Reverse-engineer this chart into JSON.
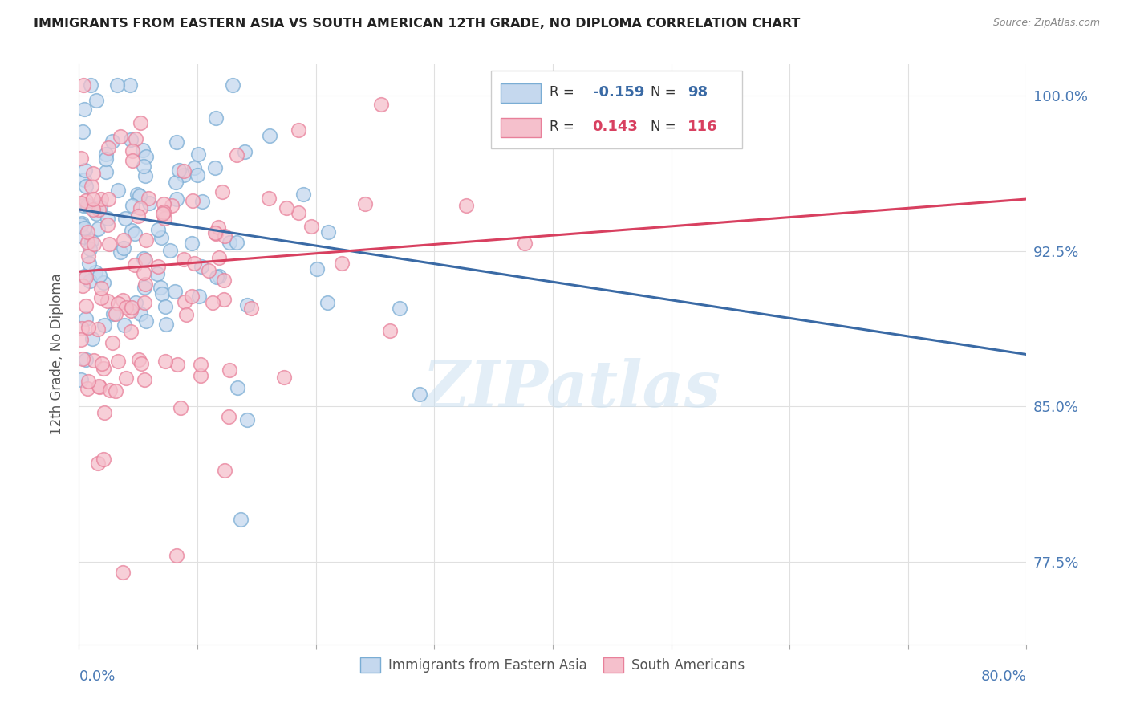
{
  "title": "IMMIGRANTS FROM EASTERN ASIA VS SOUTH AMERICAN 12TH GRADE, NO DIPLOMA CORRELATION CHART",
  "source": "Source: ZipAtlas.com",
  "ylabel": "12th Grade, No Diploma",
  "ytick_vals": [
    0.775,
    0.85,
    0.925,
    1.0
  ],
  "ytick_labels": [
    "77.5%",
    "85.0%",
    "92.5%",
    "100.0%"
  ],
  "xmin": 0.0,
  "xmax": 0.8,
  "ymin": 0.735,
  "ymax": 1.015,
  "blue_R": -0.159,
  "blue_N": 98,
  "pink_R": 0.143,
  "pink_N": 116,
  "blue_fill": "#c5d8ee",
  "blue_edge": "#7aadd4",
  "pink_fill": "#f5c0cc",
  "pink_edge": "#e8809a",
  "blue_line_color": "#3a6aa5",
  "pink_line_color": "#d84060",
  "legend_label_blue": "Immigrants from Eastern Asia",
  "legend_label_pink": "South Americans",
  "watermark": "ZIPatlas",
  "title_color": "#222222",
  "source_color": "#888888",
  "ylabel_color": "#555555",
  "axis_label_color": "#4a7ab5",
  "grid_color": "#e0e0e0"
}
